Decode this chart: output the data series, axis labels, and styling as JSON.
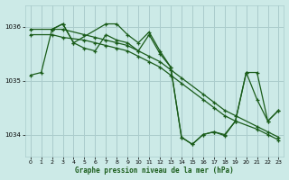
{
  "background_color": "#cceae7",
  "grid_color": "#aacccc",
  "line_color": "#1a5c1a",
  "title": "Graphe pression niveau de la mer (hPa)",
  "xlim": [
    -0.5,
    23.5
  ],
  "ylim": [
    1033.6,
    1036.4
  ],
  "yticks": [
    1034,
    1035,
    1036
  ],
  "xticks": [
    0,
    1,
    2,
    3,
    4,
    5,
    6,
    7,
    8,
    9,
    10,
    11,
    12,
    13,
    14,
    15,
    16,
    17,
    18,
    19,
    20,
    21,
    22,
    23
  ],
  "series": [
    {
      "x": [
        0,
        2,
        3,
        5,
        6,
        7,
        8,
        9,
        10,
        11,
        12,
        13,
        14,
        16,
        17,
        18,
        19,
        21,
        22,
        23
      ],
      "y": [
        1035.95,
        1035.95,
        1035.95,
        1035.85,
        1035.8,
        1035.75,
        1035.7,
        1035.65,
        1035.55,
        1035.45,
        1035.35,
        1035.2,
        1035.05,
        1034.75,
        1034.6,
        1034.45,
        1034.35,
        1034.15,
        1034.05,
        1033.95
      ]
    },
    {
      "x": [
        0,
        2,
        3,
        5,
        6,
        7,
        8,
        9,
        10,
        11,
        12,
        13,
        14,
        16,
        17,
        18,
        19,
        21,
        22,
        23
      ],
      "y": [
        1035.85,
        1035.85,
        1035.8,
        1035.75,
        1035.7,
        1035.65,
        1035.6,
        1035.55,
        1035.45,
        1035.35,
        1035.25,
        1035.1,
        1034.95,
        1034.65,
        1034.5,
        1034.35,
        1034.25,
        1034.1,
        1034.0,
        1033.9
      ]
    },
    {
      "x": [
        0,
        1,
        2,
        3,
        4,
        5,
        6,
        7,
        8,
        9,
        10,
        11,
        12,
        13,
        14,
        15,
        16,
        17,
        18,
        19,
        20,
        21,
        22,
        23
      ],
      "y": [
        1035.1,
        1035.15,
        1035.95,
        1036.05,
        1035.7,
        1035.6,
        1035.55,
        1035.85,
        1035.75,
        1035.7,
        1035.55,
        1035.85,
        1035.5,
        1035.25,
        1033.95,
        1033.82,
        1034.0,
        1034.05,
        1034.0,
        1034.25,
        1035.15,
        1034.65,
        1034.25,
        1034.45
      ]
    },
    {
      "x": [
        2,
        3,
        4,
        7,
        8,
        9,
        10,
        11,
        12,
        13,
        14,
        15,
        16,
        17,
        18,
        19,
        20,
        21,
        22,
        23
      ],
      "y": [
        1035.95,
        1036.05,
        1035.7,
        1036.05,
        1036.05,
        1035.85,
        1035.7,
        1035.9,
        1035.55,
        1035.25,
        1033.95,
        1033.82,
        1034.0,
        1034.05,
        1033.98,
        1034.25,
        1035.15,
        1035.15,
        1034.25,
        1034.45
      ]
    }
  ]
}
